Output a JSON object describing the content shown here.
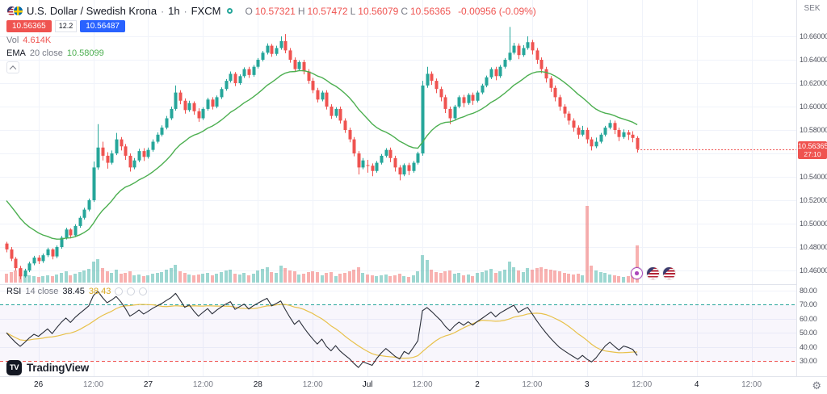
{
  "colors": {
    "up": "#26a69a",
    "down": "#ef5350",
    "vol_up": "rgba(38,166,154,0.45)",
    "vol_down": "rgba(239,83,80,0.45)",
    "ema": "#4caf50",
    "rsi_line": "#2a2e39",
    "rsi_ma": "#e8c14a",
    "grid": "#f0f3fa",
    "axis_border": "#e0e3eb",
    "band_fill": "rgba(126,87,194,0.05)",
    "buy_blue": "#2962ff",
    "badge_red": "#ef5350",
    "text_dark": "#131722",
    "text_gray": "#787b86"
  },
  "icons": {
    "gear": "⚙"
  },
  "header": {
    "symbol_name": "U.S. Dollar / Swedish Krona",
    "sep": "·",
    "interval": "1h",
    "exchange": "FXCM",
    "ohlc": {
      "o_label": "O",
      "o_value": "10.57321",
      "h_label": "H",
      "h_value": "10.57472",
      "l_label": "L",
      "l_value": "10.56079",
      "c_label": "C",
      "c_value": "10.56365",
      "change": "-0.00956 (-0.09%)"
    },
    "sell_price": "10.56365",
    "spread": "12.2",
    "buy_price": "10.56487",
    "vol_label": "Vol",
    "vol_value": "4.614K",
    "ema_title": "EMA",
    "ema_params": "20 close",
    "ema_value": "10.58099"
  },
  "rsi_legend": {
    "title": "RSI",
    "params": "14 close",
    "value": "38.45",
    "ma_value": "38.43"
  },
  "price_axis": {
    "currency": "SEK",
    "ticks": [
      "10.66000",
      "10.64000",
      "10.62000",
      "10.60000",
      "10.58000",
      "10.54000",
      "10.52000",
      "10.50000",
      "10.48000",
      "10.46000"
    ],
    "last_price": "10.56365",
    "countdown": "27:10"
  },
  "rsi_axis": {
    "ticks": [
      "80.00",
      "70.00",
      "60.00",
      "50.00",
      "40.00",
      "30.00"
    ]
  },
  "footer": {
    "brand": "TradingView",
    "logo_mark": "TV"
  },
  "chart_data": {
    "type": "candlestick",
    "title": "U.S. Dollar / Swedish Krona",
    "symbol": "USD/SEK",
    "interval": "1h",
    "exchange": "FXCM",
    "legend_ohlc": {
      "open": 10.57321,
      "high": 10.57472,
      "low": 10.56079,
      "close": 10.56365,
      "change": -0.00956,
      "change_pct": -0.09
    },
    "price_range_shown": [
      10.46,
      10.66
    ],
    "overlays": [
      {
        "name": "EMA",
        "length": 20,
        "source": "close",
        "last_value": 10.58099
      }
    ],
    "indicators": [
      {
        "name": "RSI",
        "length": 14,
        "source": "close",
        "last_value": 38.45,
        "ma_last_value": 38.43,
        "upper_band": 70,
        "lower_band": 30,
        "rsi_range_shown": [
          30,
          80
        ]
      }
    ],
    "volume_last_k": 4.614,
    "ohlc_format": [
      "open",
      "high",
      "low",
      "close",
      "volume_k"
    ],
    "candles": [
      [
        10.483,
        10.4845,
        10.4755,
        10.478,
        1.1
      ],
      [
        10.478,
        10.48,
        10.468,
        10.47,
        1.3
      ],
      [
        10.47,
        10.4715,
        10.46,
        10.462,
        1.5
      ],
      [
        10.462,
        10.464,
        10.4525,
        10.455,
        1.7
      ],
      [
        10.455,
        10.4615,
        10.454,
        10.46,
        1.0
      ],
      [
        10.46,
        10.4675,
        10.4585,
        10.466,
        0.9
      ],
      [
        10.466,
        10.4725,
        10.4645,
        10.471,
        0.8
      ],
      [
        10.471,
        10.473,
        10.4655,
        10.468,
        0.7
      ],
      [
        10.468,
        10.4745,
        10.4665,
        10.473,
        0.8
      ],
      [
        10.473,
        10.4795,
        10.4715,
        10.478,
        0.9
      ],
      [
        10.478,
        10.479,
        10.4695,
        10.472,
        0.8
      ],
      [
        10.472,
        10.4815,
        10.4705,
        10.48,
        1.0
      ],
      [
        10.48,
        10.4895,
        10.4785,
        10.488,
        1.2
      ],
      [
        10.488,
        10.4965,
        10.4865,
        10.495,
        1.4
      ],
      [
        10.495,
        10.496,
        10.4875,
        10.49,
        0.9
      ],
      [
        10.49,
        10.4995,
        10.4885,
        10.498,
        1.1
      ],
      [
        10.498,
        10.5065,
        10.4965,
        10.505,
        1.3
      ],
      [
        10.505,
        10.5135,
        10.5035,
        10.512,
        1.5
      ],
      [
        10.512,
        10.5215,
        10.5105,
        10.52,
        1.7
      ],
      [
        10.52,
        10.553,
        10.5185,
        10.548,
        2.6
      ],
      [
        10.548,
        10.585,
        10.546,
        10.565,
        2.9
      ],
      [
        10.565,
        10.57,
        10.554,
        10.558,
        1.8
      ],
      [
        10.558,
        10.561,
        10.547,
        10.552,
        1.4
      ],
      [
        10.552,
        10.5625,
        10.5505,
        10.56,
        1.2
      ],
      [
        10.56,
        10.5775,
        10.5585,
        10.572,
        1.6
      ],
      [
        10.572,
        10.574,
        10.5625,
        10.566,
        1.1
      ],
      [
        10.566,
        10.568,
        10.5545,
        10.558,
        1.2
      ],
      [
        10.558,
        10.56,
        10.5445,
        10.548,
        1.4
      ],
      [
        10.548,
        10.556,
        10.5465,
        10.554,
        0.9
      ],
      [
        10.554,
        10.564,
        10.5525,
        10.562,
        1.0
      ],
      [
        10.562,
        10.5645,
        10.5535,
        10.557,
        0.8
      ],
      [
        10.557,
        10.565,
        10.5555,
        10.563,
        0.9
      ],
      [
        10.563,
        10.572,
        10.5615,
        10.57,
        1.1
      ],
      [
        10.57,
        10.578,
        10.5685,
        10.576,
        1.2
      ],
      [
        10.576,
        10.584,
        10.5745,
        10.582,
        1.3
      ],
      [
        10.582,
        10.592,
        10.5805,
        10.59,
        1.6
      ],
      [
        10.59,
        10.6,
        10.5885,
        10.598,
        1.8
      ],
      [
        10.598,
        10.618,
        10.5965,
        10.612,
        2.2
      ],
      [
        10.612,
        10.614,
        10.602,
        10.605,
        1.4
      ],
      [
        10.605,
        10.607,
        10.594,
        10.597,
        1.2
      ],
      [
        10.597,
        10.605,
        10.5955,
        10.603,
        1.0
      ],
      [
        10.603,
        10.6045,
        10.593,
        10.596,
        0.9
      ],
      [
        10.596,
        10.5985,
        10.587,
        10.59,
        1.0
      ],
      [
        10.59,
        10.5995,
        10.5885,
        10.598,
        1.1
      ],
      [
        10.598,
        10.6075,
        10.5965,
        10.606,
        1.2
      ],
      [
        10.606,
        10.608,
        10.5975,
        10.6,
        0.9
      ],
      [
        10.6,
        10.6095,
        10.5985,
        10.608,
        1.1
      ],
      [
        10.608,
        10.6165,
        10.6065,
        10.615,
        1.3
      ],
      [
        10.615,
        10.6235,
        10.6135,
        10.622,
        1.5
      ],
      [
        10.622,
        10.63,
        10.6205,
        10.628,
        1.6
      ],
      [
        10.628,
        10.6295,
        10.6175,
        10.62,
        1.1
      ],
      [
        10.62,
        10.6275,
        10.6185,
        10.626,
        1.0
      ],
      [
        10.626,
        10.6335,
        10.6245,
        10.632,
        1.2
      ],
      [
        10.632,
        10.634,
        10.6245,
        10.627,
        0.9
      ],
      [
        10.627,
        10.6355,
        10.6255,
        10.634,
        1.1
      ],
      [
        10.634,
        10.6415,
        10.6325,
        10.64,
        1.5
      ],
      [
        10.64,
        10.6475,
        10.6385,
        10.646,
        1.7
      ],
      [
        10.646,
        10.654,
        10.6445,
        10.652,
        1.9
      ],
      [
        10.652,
        10.6535,
        10.6425,
        10.645,
        1.3
      ],
      [
        10.645,
        10.652,
        10.6435,
        10.65,
        1.2
      ],
      [
        10.65,
        10.66,
        10.6485,
        10.656,
        2.1
      ],
      [
        10.656,
        10.662,
        10.6455,
        10.648,
        1.8
      ],
      [
        10.648,
        10.65,
        10.6375,
        10.64,
        1.5
      ],
      [
        10.64,
        10.642,
        10.6295,
        10.632,
        1.4
      ],
      [
        10.632,
        10.6395,
        10.6305,
        10.638,
        1.0
      ],
      [
        10.638,
        10.64,
        10.6275,
        10.63,
        1.1
      ],
      [
        10.63,
        10.632,
        10.6195,
        10.622,
        1.3
      ],
      [
        10.622,
        10.6245,
        10.6115,
        10.614,
        1.4
      ],
      [
        10.614,
        10.616,
        10.6035,
        10.606,
        1.3
      ],
      [
        10.606,
        10.6135,
        10.6045,
        10.612,
        0.9
      ],
      [
        10.612,
        10.614,
        10.5975,
        10.6,
        1.2
      ],
      [
        10.6,
        10.602,
        10.5895,
        10.592,
        1.3
      ],
      [
        10.592,
        10.5995,
        10.5905,
        10.598,
        0.8
      ],
      [
        10.598,
        10.6,
        10.5855,
        10.588,
        1.1
      ],
      [
        10.588,
        10.59,
        10.5775,
        10.58,
        1.2
      ],
      [
        10.58,
        10.582,
        10.5695,
        10.572,
        1.4
      ],
      [
        10.572,
        10.574,
        10.5575,
        10.56,
        1.6
      ],
      [
        10.56,
        10.562,
        10.542,
        10.548,
        1.9
      ],
      [
        10.548,
        10.556,
        10.5465,
        10.554,
        1.2
      ],
      [
        10.55,
        10.5545,
        10.5435,
        10.5495,
        1.0
      ],
      [
        10.5495,
        10.5515,
        10.5405,
        10.545,
        0.9
      ],
      [
        10.545,
        10.5535,
        10.5435,
        10.552,
        0.8
      ],
      [
        10.552,
        10.5595,
        10.5505,
        10.558,
        0.9
      ],
      [
        10.558,
        10.5645,
        10.5565,
        10.563,
        1.0
      ],
      [
        10.563,
        10.565,
        10.5525,
        10.556,
        0.8
      ],
      [
        10.556,
        10.558,
        10.5445,
        10.548,
        0.9
      ],
      [
        10.548,
        10.55,
        10.537,
        10.542,
        1.1
      ],
      [
        10.542,
        10.5515,
        10.5405,
        10.55,
        0.8
      ],
      [
        10.55,
        10.552,
        10.5415,
        10.545,
        0.7
      ],
      [
        10.545,
        10.5535,
        10.5435,
        10.552,
        0.9
      ],
      [
        10.552,
        10.5615,
        10.5505,
        10.56,
        1.4
      ],
      [
        10.56,
        10.622,
        10.558,
        10.618,
        3.4
      ],
      [
        10.618,
        10.634,
        10.616,
        10.628,
        2.8
      ],
      [
        10.628,
        10.63,
        10.6185,
        10.622,
        1.6
      ],
      [
        10.622,
        10.624,
        10.6115,
        10.615,
        1.3
      ],
      [
        10.615,
        10.617,
        10.6045,
        10.608,
        1.2
      ],
      [
        10.608,
        10.61,
        10.5945,
        10.598,
        1.4
      ],
      [
        10.598,
        10.6,
        10.585,
        10.59,
        1.5
      ],
      [
        10.59,
        10.6015,
        10.5885,
        10.6,
        1.1
      ],
      [
        10.6,
        10.6095,
        10.5985,
        10.608,
        1.2
      ],
      [
        10.608,
        10.61,
        10.5995,
        10.603,
        0.9
      ],
      [
        10.603,
        10.6115,
        10.6015,
        10.61,
        1.0
      ],
      [
        10.61,
        10.612,
        10.6015,
        10.605,
        0.8
      ],
      [
        10.605,
        10.6135,
        10.6035,
        10.612,
        1.2
      ],
      [
        10.612,
        10.6195,
        10.6105,
        10.618,
        1.3
      ],
      [
        10.618,
        10.6265,
        10.6165,
        10.625,
        1.5
      ],
      [
        10.625,
        10.6335,
        10.6235,
        10.632,
        1.7
      ],
      [
        10.632,
        10.634,
        10.6225,
        10.626,
        1.2
      ],
      [
        10.626,
        10.6355,
        10.6245,
        10.634,
        1.4
      ],
      [
        10.634,
        10.6415,
        10.6325,
        10.64,
        1.6
      ],
      [
        10.64,
        10.668,
        10.6385,
        10.646,
        2.6
      ],
      [
        10.646,
        10.6545,
        10.6445,
        10.652,
        1.9
      ],
      [
        10.652,
        10.654,
        10.6405,
        10.644,
        1.5
      ],
      [
        10.644,
        10.6525,
        10.6425,
        10.65,
        1.3
      ],
      [
        10.65,
        10.66,
        10.6485,
        10.655,
        1.8
      ],
      [
        10.655,
        10.657,
        10.6445,
        10.648,
        1.6
      ],
      [
        10.648,
        10.65,
        10.6365,
        10.64,
        1.8
      ],
      [
        10.64,
        10.642,
        10.6285,
        10.632,
        1.9
      ],
      [
        10.632,
        10.634,
        10.6205,
        10.624,
        1.7
      ],
      [
        10.624,
        10.626,
        10.6125,
        10.616,
        1.6
      ],
      [
        10.616,
        10.618,
        10.6045,
        10.608,
        1.5
      ],
      [
        10.608,
        10.61,
        10.5965,
        10.6,
        1.4
      ],
      [
        10.6,
        10.602,
        10.5905,
        10.594,
        1.2
      ],
      [
        10.594,
        10.596,
        10.5845,
        10.588,
        1.1
      ],
      [
        10.588,
        10.59,
        10.5785,
        10.582,
        1.0
      ],
      [
        10.582,
        10.584,
        10.5725,
        10.576,
        1.1
      ],
      [
        10.576,
        10.5835,
        10.5745,
        10.58,
        0.9
      ],
      [
        10.58,
        10.582,
        10.5685,
        10.572,
        9.5
      ],
      [
        10.572,
        10.574,
        10.5625,
        10.566,
        2.1
      ],
      [
        10.566,
        10.5735,
        10.5645,
        10.57,
        1.5
      ],
      [
        10.57,
        10.5775,
        10.5685,
        10.576,
        1.3
      ],
      [
        10.576,
        10.5835,
        10.5745,
        10.582,
        1.2
      ],
      [
        10.582,
        10.5885,
        10.5805,
        10.586,
        1.0
      ],
      [
        10.586,
        10.588,
        10.5765,
        10.58,
        0.9
      ],
      [
        10.58,
        10.582,
        10.5705,
        10.574,
        0.8
      ],
      [
        10.574,
        10.5805,
        10.5725,
        10.578,
        0.7
      ],
      [
        10.578,
        10.58,
        10.5715,
        10.576,
        0.8
      ],
      [
        10.576,
        10.579,
        10.5695,
        10.57321,
        0.9
      ],
      [
        10.57321,
        10.57472,
        10.56079,
        10.56365,
        4.614
      ]
    ],
    "time_ticks": [
      {
        "label": "26",
        "i": 7,
        "major": true
      },
      {
        "label": "12:00",
        "i": 19,
        "major": false
      },
      {
        "label": "27",
        "i": 31,
        "major": true
      },
      {
        "label": "12:00",
        "i": 43,
        "major": false
      },
      {
        "label": "28",
        "i": 55,
        "major": true
      },
      {
        "label": "12:00",
        "i": 67,
        "major": false
      },
      {
        "label": "Jul",
        "i": 79,
        "major": true
      },
      {
        "label": "12:00",
        "i": 91,
        "major": false
      },
      {
        "label": "2",
        "i": 103,
        "major": true
      },
      {
        "label": "12:00",
        "i": 115,
        "major": false
      },
      {
        "label": "3",
        "i": 127,
        "major": true
      },
      {
        "label": "12:00",
        "i": 139,
        "major": false
      },
      {
        "label": "4",
        "i": 151,
        "major": true
      },
      {
        "label": "12:00",
        "i": 163,
        "major": false
      }
    ]
  }
}
